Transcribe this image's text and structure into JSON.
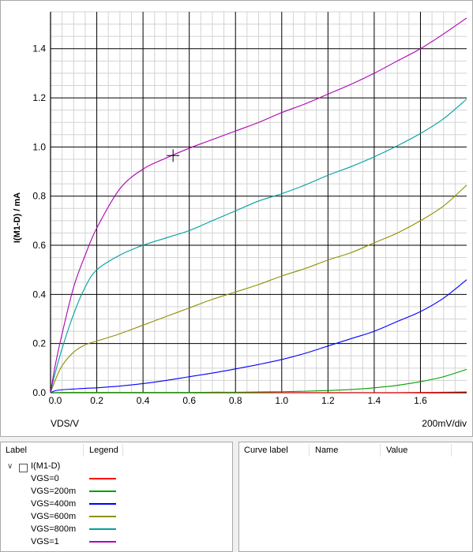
{
  "chart_data": {
    "type": "line",
    "xlabel": "VDS/V",
    "ylabel": "I(M1-D) / mA",
    "scale_label": "200mV/div",
    "xlim": [
      0,
      1.8
    ],
    "ylim": [
      0,
      1.55
    ],
    "x_ticks": [
      "0.0",
      "0.2",
      "0.4",
      "0.6",
      "0.8",
      "1.0",
      "1.2",
      "1.4",
      "1.6"
    ],
    "y_ticks": [
      "0.0",
      "0.2",
      "0.4",
      "0.6",
      "0.8",
      "1.0",
      "1.2",
      "1.4"
    ],
    "x": [
      0,
      0.02,
      0.05,
      0.1,
      0.15,
      0.2,
      0.3,
      0.4,
      0.5,
      0.6,
      0.7,
      0.8,
      0.9,
      1.0,
      1.1,
      1.2,
      1.3,
      1.4,
      1.5,
      1.6,
      1.7,
      1.8
    ],
    "series": [
      {
        "name": "VGS=0",
        "color": "#ff0000",
        "values": [
          0,
          0,
          0,
          0,
          0,
          0,
          0,
          0,
          0,
          0,
          0,
          0,
          0,
          0,
          0,
          0,
          0,
          0,
          0,
          0.001,
          0.002,
          0.003
        ]
      },
      {
        "name": "VGS=200m",
        "color": "#00a000",
        "values": [
          0,
          0,
          0.001,
          0.001,
          0.001,
          0.001,
          0.001,
          0.001,
          0.001,
          0.001,
          0.002,
          0.002,
          0.003,
          0.004,
          0.006,
          0.009,
          0.013,
          0.02,
          0.03,
          0.045,
          0.065,
          0.095
        ]
      },
      {
        "name": "VGS=400m",
        "color": "#0000ff",
        "values": [
          0,
          0.008,
          0.012,
          0.015,
          0.018,
          0.02,
          0.027,
          0.037,
          0.05,
          0.065,
          0.08,
          0.097,
          0.115,
          0.135,
          0.16,
          0.19,
          0.22,
          0.25,
          0.29,
          0.33,
          0.385,
          0.46
        ]
      },
      {
        "name": "VGS=600m",
        "color": "#909000",
        "values": [
          0,
          0.05,
          0.11,
          0.165,
          0.195,
          0.21,
          0.24,
          0.275,
          0.31,
          0.345,
          0.38,
          0.41,
          0.44,
          0.475,
          0.505,
          0.54,
          0.57,
          0.61,
          0.65,
          0.7,
          0.76,
          0.845
        ]
      },
      {
        "name": "VGS=800m",
        "color": "#00a0a0",
        "values": [
          0,
          0.08,
          0.18,
          0.32,
          0.43,
          0.5,
          0.56,
          0.6,
          0.63,
          0.66,
          0.7,
          0.74,
          0.78,
          0.81,
          0.845,
          0.885,
          0.92,
          0.96,
          1.005,
          1.055,
          1.115,
          1.195
        ]
      },
      {
        "name": "VGS=1",
        "color": "#b000b0",
        "values": [
          0,
          0.11,
          0.24,
          0.43,
          0.56,
          0.67,
          0.83,
          0.91,
          0.955,
          0.995,
          1.03,
          1.065,
          1.1,
          1.14,
          1.175,
          1.215,
          1.255,
          1.3,
          1.35,
          1.4,
          1.46,
          1.525
        ]
      }
    ],
    "grid": true,
    "cursor": {
      "x": 0.53,
      "y": 0.965
    }
  },
  "legend_panel": {
    "col_label": "Label",
    "col_legend": "Legend",
    "group_label": "I(M1-D)"
  },
  "cursor_panel": {
    "col_curve": "Curve label",
    "col_name": "Name",
    "col_value": "Value"
  }
}
